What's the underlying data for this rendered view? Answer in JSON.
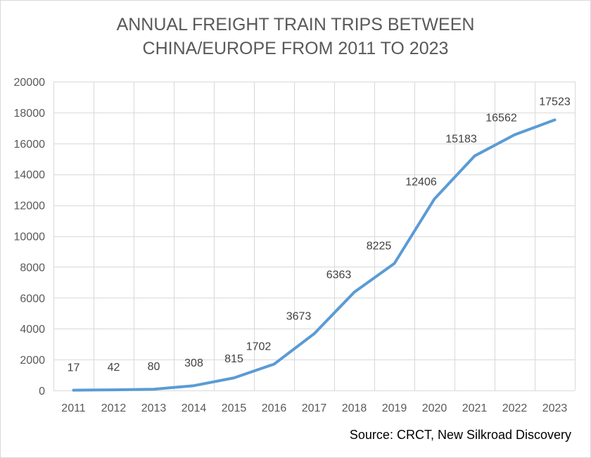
{
  "chart_data": {
    "type": "line",
    "title_lines": [
      "ANNUAL FREIGHT TRAIN TRIPS BETWEEN",
      "CHINA/EUROPE FROM 2011 TO 2023"
    ],
    "categories": [
      "2011",
      "2012",
      "2013",
      "2014",
      "2015",
      "2016",
      "2017",
      "2018",
      "2019",
      "2020",
      "2021",
      "2022",
      "2023"
    ],
    "values": [
      17,
      42,
      80,
      308,
      815,
      1702,
      3673,
      6363,
      8225,
      12406,
      15183,
      16562,
      17523
    ],
    "data_labels": [
      "17",
      "42",
      "80",
      "308",
      "815",
      "1702",
      "3673",
      "6363",
      "8225",
      "12406",
      "15183",
      "16562",
      "17523"
    ],
    "y_ticks": [
      "0",
      "2000",
      "4000",
      "6000",
      "8000",
      "10000",
      "12000",
      "14000",
      "16000",
      "18000",
      "20000"
    ],
    "ylim": [
      0,
      20000
    ],
    "grid": true,
    "legend": false,
    "line_color": "#5b9bd5",
    "source": "Source: CRCT, New Silkroad Discovery"
  }
}
